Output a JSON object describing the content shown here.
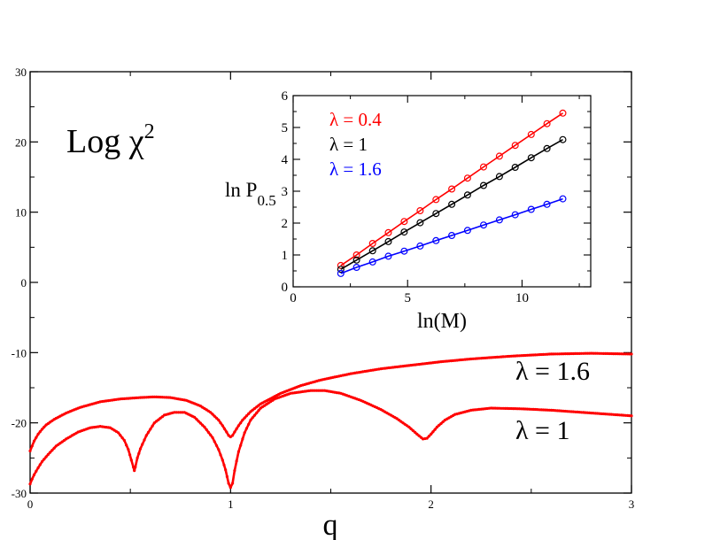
{
  "chart_data": [
    {
      "type": "line",
      "panel": "main",
      "title": "Log χ²",
      "title_parts": {
        "text": "Log χ",
        "superscript": "2"
      },
      "xlabel": "q",
      "ylabel": "",
      "xlim": [
        0,
        3
      ],
      "ylim": [
        -30,
        30
      ],
      "xticks": [
        0,
        1,
        2,
        3
      ],
      "yticks": [
        -30,
        -20,
        -10,
        0,
        10,
        20,
        30
      ],
      "xtick_labels": [
        "0",
        "1",
        "2",
        "3"
      ],
      "ytick_labels": [
        "-30",
        "-20",
        "-10",
        "0",
        "10",
        "20",
        "30"
      ],
      "grid": false,
      "legend": "curve labels to the right",
      "color": "#ff0000",
      "series": [
        {
          "name": "λ = 1.6",
          "label": "λ = 1.6",
          "points": [
            [
              0.0,
              -24.0
            ],
            [
              0.01,
              -23.3
            ],
            [
              0.02,
              -22.6
            ],
            [
              0.04,
              -21.6
            ],
            [
              0.06,
              -20.9
            ],
            [
              0.08,
              -20.3
            ],
            [
              0.12,
              -19.5
            ],
            [
              0.18,
              -18.6
            ],
            [
              0.25,
              -17.8
            ],
            [
              0.35,
              -17.0
            ],
            [
              0.45,
              -16.6
            ],
            [
              0.55,
              -16.4
            ],
            [
              0.62,
              -16.3
            ],
            [
              0.7,
              -16.4
            ],
            [
              0.78,
              -16.8
            ],
            [
              0.85,
              -17.6
            ],
            [
              0.9,
              -18.5
            ],
            [
              0.94,
              -19.6
            ],
            [
              0.96,
              -20.4
            ],
            [
              0.98,
              -21.3
            ],
            [
              0.99,
              -21.8
            ],
            [
              1.0,
              -22.0
            ],
            [
              1.01,
              -21.8
            ],
            [
              1.02,
              -21.3
            ],
            [
              1.04,
              -20.4
            ],
            [
              1.06,
              -19.6
            ],
            [
              1.1,
              -18.4
            ],
            [
              1.15,
              -17.3
            ],
            [
              1.25,
              -15.8
            ],
            [
              1.35,
              -14.7
            ],
            [
              1.45,
              -13.9
            ],
            [
              1.6,
              -13.0
            ],
            [
              1.75,
              -12.3
            ],
            [
              1.9,
              -11.8
            ],
            [
              2.05,
              -11.3
            ],
            [
              2.2,
              -10.9
            ],
            [
              2.4,
              -10.5
            ],
            [
              2.6,
              -10.2
            ],
            [
              2.8,
              -10.1
            ],
            [
              3.0,
              -10.2
            ]
          ]
        },
        {
          "name": "λ = 1",
          "label": "λ = 1",
          "points": [
            [
              0.0,
              -28.7
            ],
            [
              0.01,
              -28.0
            ],
            [
              0.02,
              -27.4
            ],
            [
              0.04,
              -26.4
            ],
            [
              0.06,
              -25.5
            ],
            [
              0.09,
              -24.5
            ],
            [
              0.13,
              -23.3
            ],
            [
              0.18,
              -22.3
            ],
            [
              0.24,
              -21.3
            ],
            [
              0.3,
              -20.7
            ],
            [
              0.35,
              -20.5
            ],
            [
              0.4,
              -20.7
            ],
            [
              0.44,
              -21.4
            ],
            [
              0.47,
              -22.5
            ],
            [
              0.49,
              -23.8
            ],
            [
              0.505,
              -25.3
            ],
            [
              0.515,
              -26.3
            ],
            [
              0.52,
              -26.8
            ],
            [
              0.525,
              -26.3
            ],
            [
              0.535,
              -25.0
            ],
            [
              0.55,
              -23.7
            ],
            [
              0.58,
              -21.8
            ],
            [
              0.62,
              -20.0
            ],
            [
              0.67,
              -18.9
            ],
            [
              0.72,
              -18.5
            ],
            [
              0.77,
              -18.5
            ],
            [
              0.82,
              -19.2
            ],
            [
              0.87,
              -20.6
            ],
            [
              0.91,
              -22.1
            ],
            [
              0.94,
              -23.8
            ],
            [
              0.96,
              -25.3
            ],
            [
              0.975,
              -26.7
            ],
            [
              0.99,
              -28.6
            ],
            [
              1.0,
              -29.2
            ],
            [
              1.01,
              -28.6
            ],
            [
              1.02,
              -26.8
            ],
            [
              1.04,
              -24.1
            ],
            [
              1.07,
              -21.4
            ],
            [
              1.1,
              -19.6
            ],
            [
              1.15,
              -17.9
            ],
            [
              1.22,
              -16.6
            ],
            [
              1.3,
              -15.8
            ],
            [
              1.4,
              -15.4
            ],
            [
              1.47,
              -15.4
            ],
            [
              1.55,
              -15.8
            ],
            [
              1.65,
              -16.8
            ],
            [
              1.75,
              -18.1
            ],
            [
              1.83,
              -19.4
            ],
            [
              1.89,
              -20.6
            ],
            [
              1.93,
              -21.6
            ],
            [
              1.96,
              -22.3
            ],
            [
              1.98,
              -22.2
            ],
            [
              2.0,
              -21.6
            ],
            [
              2.03,
              -20.6
            ],
            [
              2.07,
              -19.6
            ],
            [
              2.12,
              -18.8
            ],
            [
              2.2,
              -18.2
            ],
            [
              2.3,
              -17.9
            ],
            [
              2.45,
              -18.0
            ],
            [
              2.6,
              -18.2
            ],
            [
              2.8,
              -18.6
            ],
            [
              3.0,
              -19.0
            ]
          ]
        }
      ]
    },
    {
      "type": "line",
      "panel": "inset",
      "title": "",
      "xlabel": "ln(M)",
      "ylabel": "ln P0.5",
      "ylabel_parts": {
        "text": "ln P",
        "subscript": "0.5"
      },
      "xlim": [
        0,
        13
      ],
      "ylim": [
        0,
        6
      ],
      "xticks": [
        0,
        5,
        10
      ],
      "yticks": [
        0,
        1,
        2,
        3,
        4,
        5,
        6
      ],
      "xtick_labels": [
        "0",
        "5",
        "10"
      ],
      "ytick_labels": [
        "0",
        "1",
        "2",
        "3",
        "4",
        "5",
        "6"
      ],
      "grid": false,
      "legend": "top-left",
      "x": [
        2.08,
        2.77,
        3.47,
        4.16,
        4.85,
        5.55,
        6.24,
        6.93,
        7.62,
        8.32,
        9.01,
        9.7,
        10.4,
        11.09,
        11.78
      ],
      "series": [
        {
          "name": "λ = 0.4",
          "label": "λ = 0.4",
          "color": "#ff0000",
          "values": [
            0.67,
            1.0,
            1.36,
            1.7,
            2.05,
            2.39,
            2.74,
            3.07,
            3.41,
            3.76,
            4.1,
            4.44,
            4.78,
            5.12,
            5.45
          ]
        },
        {
          "name": "λ = 1",
          "label": "λ = 1",
          "color": "#000000",
          "values": [
            0.55,
            0.84,
            1.13,
            1.42,
            1.72,
            2.01,
            2.3,
            2.59,
            2.88,
            3.18,
            3.46,
            3.75,
            4.05,
            4.34,
            4.62
          ]
        },
        {
          "name": "λ = 1.6",
          "label": "λ = 1.6",
          "color": "#0000ff",
          "values": [
            0.42,
            0.61,
            0.78,
            0.96,
            1.12,
            1.28,
            1.45,
            1.61,
            1.77,
            1.94,
            2.1,
            2.26,
            2.43,
            2.59,
            2.76
          ]
        }
      ]
    }
  ]
}
